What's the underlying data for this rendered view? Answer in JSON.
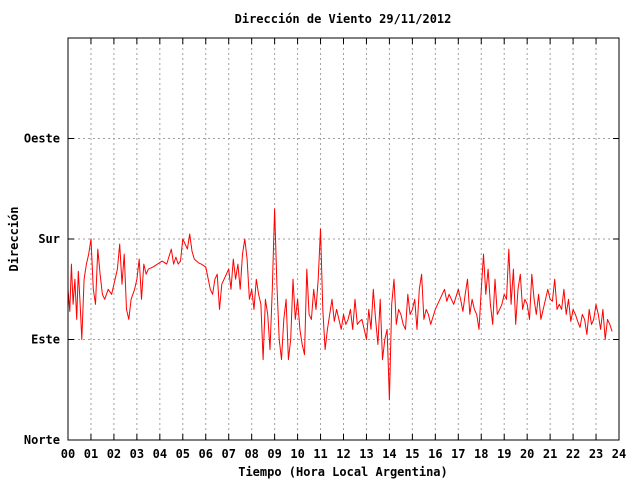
{
  "chart_data": {
    "type": "line",
    "title": "Dirección de Viento 29/11/2012",
    "xlabel": "Tiempo (Hora Local Argentina)",
    "ylabel": "Dirección",
    "xlim": [
      0,
      24
    ],
    "ylim": [
      0,
      400
    ],
    "x_ticks": [
      {
        "value": 0,
        "label": "00"
      },
      {
        "value": 1,
        "label": "01"
      },
      {
        "value": 2,
        "label": "02"
      },
      {
        "value": 3,
        "label": "03"
      },
      {
        "value": 4,
        "label": "04"
      },
      {
        "value": 5,
        "label": "05"
      },
      {
        "value": 6,
        "label": "06"
      },
      {
        "value": 7,
        "label": "07"
      },
      {
        "value": 8,
        "label": "08"
      },
      {
        "value": 9,
        "label": "09"
      },
      {
        "value": 10,
        "label": "10"
      },
      {
        "value": 11,
        "label": "11"
      },
      {
        "value": 12,
        "label": "12"
      },
      {
        "value": 13,
        "label": "13"
      },
      {
        "value": 14,
        "label": "14"
      },
      {
        "value": 15,
        "label": "15"
      },
      {
        "value": 16,
        "label": "16"
      },
      {
        "value": 17,
        "label": "17"
      },
      {
        "value": 18,
        "label": "18"
      },
      {
        "value": 19,
        "label": "19"
      },
      {
        "value": 20,
        "label": "20"
      },
      {
        "value": 21,
        "label": "21"
      },
      {
        "value": 22,
        "label": "22"
      },
      {
        "value": 23,
        "label": "23"
      },
      {
        "value": 24,
        "label": "24"
      }
    ],
    "y_ticks": [
      {
        "value": 0,
        "label": "Norte"
      },
      {
        "value": 100,
        "label": "Este"
      },
      {
        "value": 200,
        "label": "Sur"
      },
      {
        "value": 300,
        "label": "Oeste"
      }
    ],
    "grid": true,
    "legend": "none",
    "series": [
      {
        "color": "#ff0000",
        "points": [
          [
            0.0,
            150
          ],
          [
            0.08,
            128
          ],
          [
            0.15,
            175
          ],
          [
            0.22,
            135
          ],
          [
            0.3,
            160
          ],
          [
            0.38,
            120
          ],
          [
            0.45,
            168
          ],
          [
            0.52,
            140
          ],
          [
            0.6,
            100
          ],
          [
            0.7,
            160
          ],
          [
            0.8,
            175
          ],
          [
            0.9,
            185
          ],
          [
            1.0,
            200
          ],
          [
            1.1,
            150
          ],
          [
            1.2,
            135
          ],
          [
            1.3,
            190
          ],
          [
            1.4,
            165
          ],
          [
            1.5,
            145
          ],
          [
            1.6,
            140
          ],
          [
            1.75,
            150
          ],
          [
            1.9,
            145
          ],
          [
            2.05,
            160
          ],
          [
            2.15,
            170
          ],
          [
            2.25,
            195
          ],
          [
            2.35,
            155
          ],
          [
            2.45,
            185
          ],
          [
            2.55,
            130
          ],
          [
            2.65,
            120
          ],
          [
            2.75,
            140
          ],
          [
            2.9,
            150
          ],
          [
            3.0,
            160
          ],
          [
            3.1,
            180
          ],
          [
            3.2,
            140
          ],
          [
            3.3,
            175
          ],
          [
            3.4,
            165
          ],
          [
            3.5,
            170
          ],
          [
            3.7,
            172
          ],
          [
            3.9,
            175
          ],
          [
            4.1,
            178
          ],
          [
            4.3,
            175
          ],
          [
            4.5,
            190
          ],
          [
            4.6,
            175
          ],
          [
            4.7,
            182
          ],
          [
            4.8,
            175
          ],
          [
            4.9,
            178
          ],
          [
            5.0,
            200
          ],
          [
            5.1,
            195
          ],
          [
            5.2,
            190
          ],
          [
            5.3,
            205
          ],
          [
            5.4,
            188
          ],
          [
            5.5,
            180
          ],
          [
            5.6,
            178
          ],
          [
            5.7,
            176
          ],
          [
            5.8,
            175
          ],
          [
            6.0,
            172
          ],
          [
            6.2,
            150
          ],
          [
            6.3,
            145
          ],
          [
            6.4,
            160
          ],
          [
            6.5,
            165
          ],
          [
            6.6,
            130
          ],
          [
            6.7,
            155
          ],
          [
            6.8,
            160
          ],
          [
            7.0,
            170
          ],
          [
            7.1,
            150
          ],
          [
            7.2,
            180
          ],
          [
            7.3,
            160
          ],
          [
            7.4,
            175
          ],
          [
            7.5,
            150
          ],
          [
            7.6,
            185
          ],
          [
            7.7,
            200
          ],
          [
            7.8,
            180
          ],
          [
            7.9,
            140
          ],
          [
            8.0,
            150
          ],
          [
            8.1,
            130
          ],
          [
            8.2,
            160
          ],
          [
            8.3,
            145
          ],
          [
            8.4,
            135
          ],
          [
            8.5,
            80
          ],
          [
            8.6,
            140
          ],
          [
            8.7,
            125
          ],
          [
            8.8,
            90
          ],
          [
            8.9,
            150
          ],
          [
            9.0,
            230
          ],
          [
            9.1,
            155
          ],
          [
            9.2,
            100
          ],
          [
            9.3,
            80
          ],
          [
            9.4,
            120
          ],
          [
            9.5,
            140
          ],
          [
            9.6,
            80
          ],
          [
            9.7,
            100
          ],
          [
            9.8,
            160
          ],
          [
            9.9,
            120
          ],
          [
            10.0,
            140
          ],
          [
            10.1,
            110
          ],
          [
            10.2,
            95
          ],
          [
            10.3,
            85
          ],
          [
            10.4,
            170
          ],
          [
            10.5,
            125
          ],
          [
            10.6,
            120
          ],
          [
            10.7,
            150
          ],
          [
            10.8,
            130
          ],
          [
            10.9,
            160
          ],
          [
            11.0,
            210
          ],
          [
            11.1,
            130
          ],
          [
            11.2,
            90
          ],
          [
            11.3,
            110
          ],
          [
            11.4,
            125
          ],
          [
            11.5,
            140
          ],
          [
            11.6,
            118
          ],
          [
            11.7,
            130
          ],
          [
            11.8,
            120
          ],
          [
            11.9,
            110
          ],
          [
            12.0,
            125
          ],
          [
            12.1,
            115
          ],
          [
            12.2,
            120
          ],
          [
            12.3,
            130
          ],
          [
            12.4,
            110
          ],
          [
            12.5,
            140
          ],
          [
            12.6,
            115
          ],
          [
            12.7,
            118
          ],
          [
            12.8,
            120
          ],
          [
            12.9,
            110
          ],
          [
            13.0,
            100
          ],
          [
            13.1,
            130
          ],
          [
            13.2,
            110
          ],
          [
            13.3,
            150
          ],
          [
            13.4,
            120
          ],
          [
            13.5,
            95
          ],
          [
            13.6,
            140
          ],
          [
            13.7,
            80
          ],
          [
            13.8,
            100
          ],
          [
            13.9,
            110
          ],
          [
            14.0,
            40
          ],
          [
            14.1,
            135
          ],
          [
            14.2,
            160
          ],
          [
            14.3,
            115
          ],
          [
            14.4,
            130
          ],
          [
            14.5,
            125
          ],
          [
            14.6,
            115
          ],
          [
            14.7,
            110
          ],
          [
            14.8,
            145
          ],
          [
            14.9,
            125
          ],
          [
            15.0,
            130
          ],
          [
            15.1,
            140
          ],
          [
            15.2,
            110
          ],
          [
            15.3,
            150
          ],
          [
            15.4,
            165
          ],
          [
            15.5,
            120
          ],
          [
            15.6,
            130
          ],
          [
            15.7,
            125
          ],
          [
            15.8,
            115
          ],
          [
            16.0,
            130
          ],
          [
            16.1,
            135
          ],
          [
            16.2,
            140
          ],
          [
            16.4,
            150
          ],
          [
            16.5,
            138
          ],
          [
            16.6,
            145
          ],
          [
            16.8,
            135
          ],
          [
            17.0,
            150
          ],
          [
            17.1,
            140
          ],
          [
            17.2,
            128
          ],
          [
            17.3,
            145
          ],
          [
            17.4,
            160
          ],
          [
            17.5,
            125
          ],
          [
            17.6,
            140
          ],
          [
            17.7,
            130
          ],
          [
            17.8,
            125
          ],
          [
            17.9,
            110
          ],
          [
            18.0,
            150
          ],
          [
            18.1,
            185
          ],
          [
            18.2,
            145
          ],
          [
            18.3,
            170
          ],
          [
            18.4,
            135
          ],
          [
            18.5,
            115
          ],
          [
            18.6,
            160
          ],
          [
            18.7,
            125
          ],
          [
            18.8,
            130
          ],
          [
            18.9,
            135
          ],
          [
            19.0,
            145
          ],
          [
            19.1,
            140
          ],
          [
            19.2,
            190
          ],
          [
            19.3,
            135
          ],
          [
            19.4,
            170
          ],
          [
            19.5,
            115
          ],
          [
            19.6,
            150
          ],
          [
            19.7,
            165
          ],
          [
            19.8,
            130
          ],
          [
            19.9,
            140
          ],
          [
            20.0,
            135
          ],
          [
            20.1,
            120
          ],
          [
            20.2,
            165
          ],
          [
            20.3,
            140
          ],
          [
            20.4,
            125
          ],
          [
            20.5,
            145
          ],
          [
            20.6,
            120
          ],
          [
            20.7,
            130
          ],
          [
            20.8,
            140
          ],
          [
            20.9,
            150
          ],
          [
            21.0,
            140
          ],
          [
            21.1,
            138
          ],
          [
            21.2,
            160
          ],
          [
            21.3,
            130
          ],
          [
            21.4,
            135
          ],
          [
            21.5,
            130
          ],
          [
            21.6,
            150
          ],
          [
            21.7,
            125
          ],
          [
            21.8,
            140
          ],
          [
            21.9,
            118
          ],
          [
            22.0,
            130
          ],
          [
            22.1,
            125
          ],
          [
            22.2,
            118
          ],
          [
            22.3,
            112
          ],
          [
            22.4,
            125
          ],
          [
            22.5,
            120
          ],
          [
            22.6,
            105
          ],
          [
            22.7,
            130
          ],
          [
            22.8,
            115
          ],
          [
            22.9,
            120
          ],
          [
            23.0,
            135
          ],
          [
            23.1,
            125
          ],
          [
            23.2,
            110
          ],
          [
            23.3,
            130
          ],
          [
            23.4,
            100
          ],
          [
            23.5,
            120
          ],
          [
            23.6,
            115
          ],
          [
            23.7,
            108
          ]
        ]
      }
    ]
  }
}
